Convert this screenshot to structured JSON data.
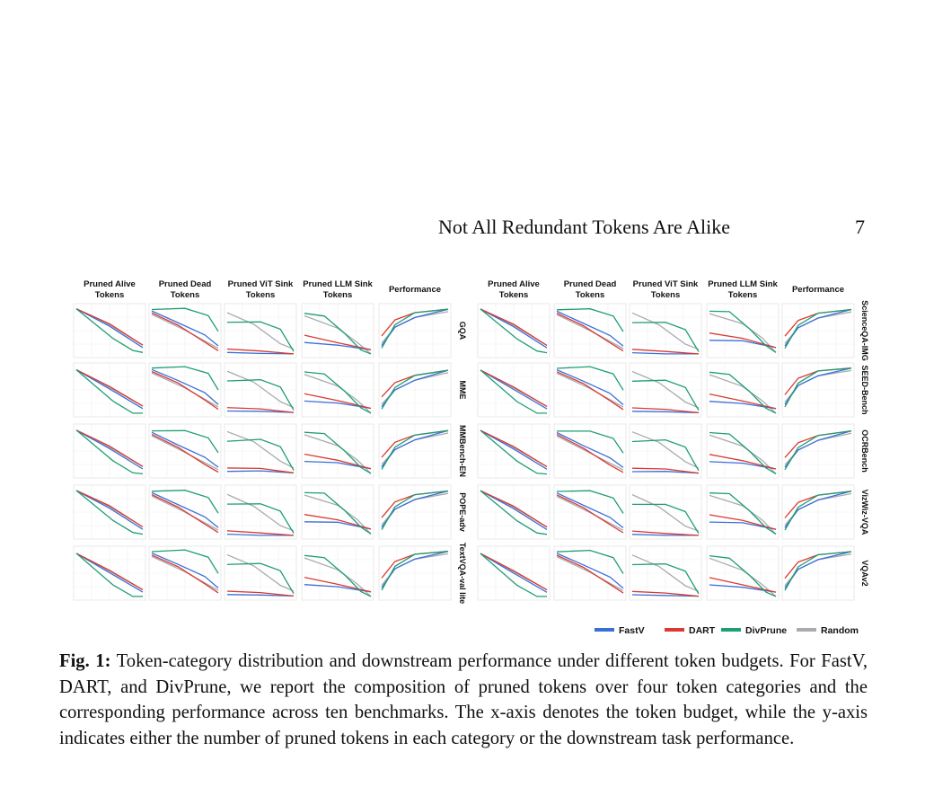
{
  "header": {
    "running_title": "Not All Redundant Tokens Are Alike",
    "page_number": "7"
  },
  "figure": {
    "column_titles": [
      [
        "Pruned Alive",
        "Tokens"
      ],
      [
        "Pruned Dead",
        "Tokens"
      ],
      [
        "Pruned ViT Sink",
        "Tokens"
      ],
      [
        "Pruned LLM Sink",
        "Tokens"
      ],
      [
        "Performance"
      ]
    ],
    "benchmarks_left": [
      "GQA",
      "MME",
      "MMBench-EN",
      "POPE-adv",
      "TextVQA-val lite"
    ],
    "benchmarks_right": [
      "ScienceQA-IMG",
      "SEED-Bench",
      "OCRBench",
      "VizWiz-VQA",
      "VQAv2"
    ],
    "legend": [
      {
        "name": "FastV",
        "color": "#3b6fd8"
      },
      {
        "name": "DART",
        "color": "#d93a32"
      },
      {
        "name": "DivPrune",
        "color": "#1e9e73"
      },
      {
        "name": "Random",
        "color": "#a9abb0"
      }
    ]
  },
  "caption": {
    "label": "Fig. 1:",
    "text": "Token-category distribution and downstream performance under different token budgets. For FastV, DART, and DivPrune, we report the composition of pruned tokens over four token categories and the corresponding performance across ten benchmarks. The x-axis denotes the token budget, while the y-axis indicates either the number of pruned tokens in each category or the downstream task performance."
  }
}
